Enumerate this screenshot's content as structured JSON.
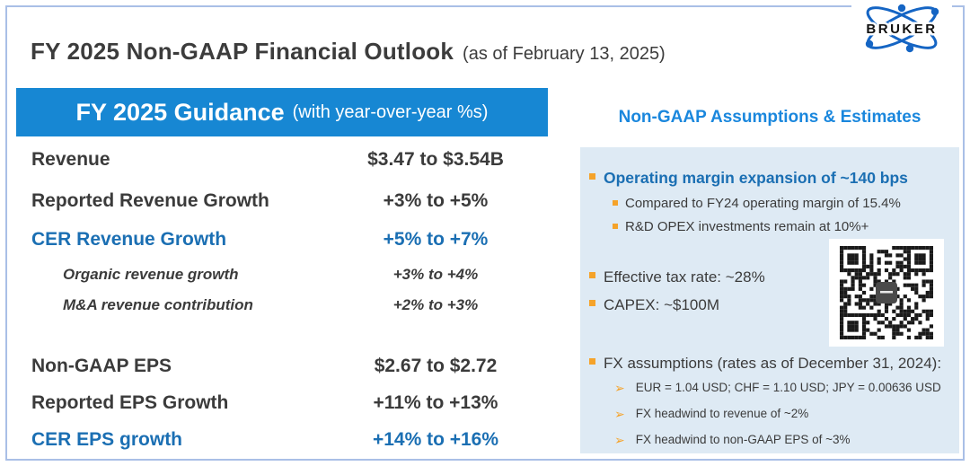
{
  "page": {
    "title": "FY 2025 Non-GAAP Financial Outlook",
    "title_suffix": "(as of February 13, 2025)",
    "logo_text": "BRUKER"
  },
  "guidance": {
    "header": "FY 2025 Guidance",
    "header_suffix": "(with year-over-year %s)",
    "rows": [
      {
        "label": "Revenue",
        "value": "$3.47 to $3.54B"
      },
      {
        "label": "Reported Revenue Growth",
        "value": "+3% to +5%"
      },
      {
        "label": "CER Revenue Growth",
        "value": "+5% to +7%"
      },
      {
        "label": "Organic revenue growth",
        "value": "+3% to +4%"
      },
      {
        "label": "M&A revenue contribution",
        "value": "+2% to +3%"
      },
      {
        "label": "Non-GAAP EPS",
        "value": "$2.67 to $2.72"
      },
      {
        "label": "Reported EPS Growth",
        "value": "+11% to +13%"
      },
      {
        "label": "CER EPS growth",
        "value": "+14% to +16%"
      }
    ]
  },
  "assumptions": {
    "header": "Non-GAAP Assumptions & Estimates",
    "operating_margin": {
      "title": "Operating margin expansion of ~140 bps",
      "sub1": "Compared to FY24 operating margin of 15.4%",
      "sub2": "R&D OPEX investments remain at 10%+"
    },
    "tax": "Effective tax rate: ~28%",
    "capex": "CAPEX: ~$100M",
    "fx": {
      "title": "FX assumptions (rates as of December 31, 2024):",
      "rates": "EUR = 1.04 USD; CHF = 1.10 USD; JPY = 0.00636 USD",
      "revenue_headwind": "FX headwind to revenue of ~2%",
      "eps_headwind": "FX headwind to non-GAAP EPS of ~3%"
    }
  },
  "colors": {
    "header_bar": "#1787d3",
    "accent_text": "#1b6fb3",
    "assumptions_header": "#1a87dd",
    "bullet_orange": "#f5a32a",
    "panel_background": "#deeaf4",
    "logo_blue": "#1565c4"
  }
}
